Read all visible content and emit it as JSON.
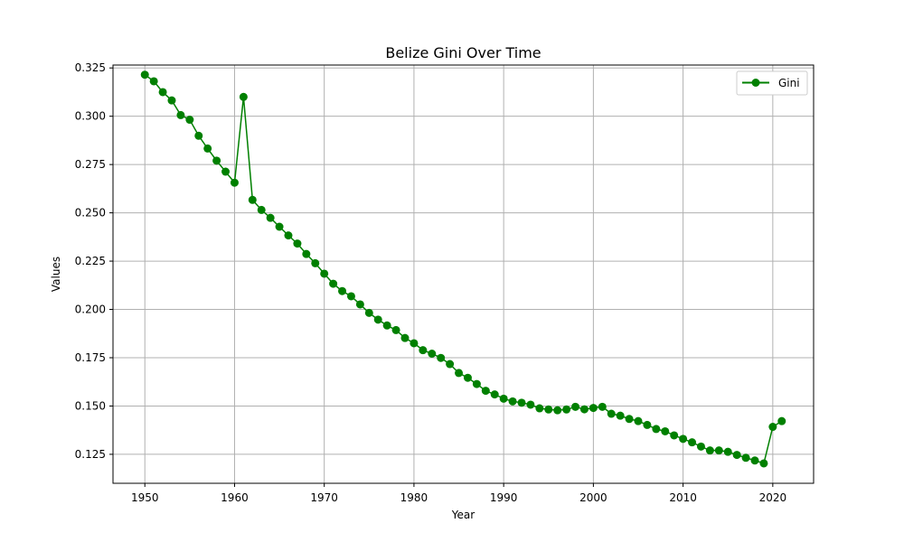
{
  "chart_data": {
    "type": "line",
    "title": "Belize Gini Over Time",
    "xlabel": "Year",
    "ylabel": "Values",
    "xlim": [
      1946.45,
      2024.55
    ],
    "ylim": [
      0.11,
      0.3265
    ],
    "x_ticks": [
      1950,
      1960,
      1970,
      1980,
      1990,
      2000,
      2010,
      2020
    ],
    "y_ticks": [
      0.125,
      0.15,
      0.175,
      0.2,
      0.225,
      0.25,
      0.275,
      0.3,
      0.325
    ],
    "y_tick_labels": [
      "0.125",
      "0.150",
      "0.175",
      "0.200",
      "0.225",
      "0.250",
      "0.275",
      "0.300",
      "0.325"
    ],
    "grid": true,
    "legend": {
      "position": "top-right",
      "entries": [
        "Gini"
      ]
    },
    "series": [
      {
        "name": "Gini",
        "color": "#008000",
        "marker": "circle",
        "x": [
          1950,
          1951,
          1952,
          1953,
          1954,
          1955,
          1956,
          1957,
          1958,
          1959,
          1960,
          1961,
          1962,
          1963,
          1964,
          1965,
          1966,
          1967,
          1968,
          1969,
          1970,
          1971,
          1972,
          1973,
          1974,
          1975,
          1976,
          1977,
          1978,
          1979,
          1980,
          1981,
          1982,
          1983,
          1984,
          1985,
          1986,
          1987,
          1988,
          1989,
          1990,
          1991,
          1992,
          1993,
          1994,
          1995,
          1996,
          1997,
          1998,
          1999,
          2000,
          2001,
          2002,
          2003,
          2004,
          2005,
          2006,
          2007,
          2008,
          2009,
          2010,
          2011,
          2012,
          2013,
          2014,
          2015,
          2016,
          2017,
          2018,
          2019,
          2020,
          2021
        ],
        "values": [
          0.3215,
          0.3181,
          0.3125,
          0.3082,
          0.3006,
          0.2982,
          0.2899,
          0.2833,
          0.277,
          0.2713,
          0.2656,
          0.31,
          0.2567,
          0.2515,
          0.2474,
          0.2428,
          0.2383,
          0.2341,
          0.2287,
          0.2239,
          0.2185,
          0.2133,
          0.2095,
          0.2068,
          0.2026,
          0.1982,
          0.1947,
          0.1917,
          0.1893,
          0.1852,
          0.1825,
          0.1789,
          0.1771,
          0.1749,
          0.1717,
          0.1671,
          0.1646,
          0.1614,
          0.1579,
          0.156,
          0.1538,
          0.1524,
          0.1517,
          0.1507,
          0.1488,
          0.1482,
          0.1478,
          0.1482,
          0.1496,
          0.1483,
          0.149,
          0.1496,
          0.146,
          0.145,
          0.1433,
          0.1422,
          0.1402,
          0.1381,
          0.1369,
          0.1348,
          0.133,
          0.1312,
          0.129,
          0.127,
          0.127,
          0.1263,
          0.1247,
          0.1232,
          0.1218,
          0.1203,
          0.1392,
          0.1422
        ]
      }
    ]
  }
}
